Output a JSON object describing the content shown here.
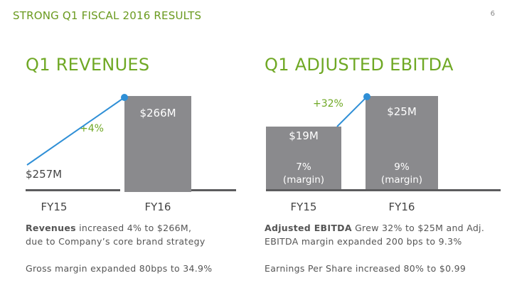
{
  "header": {
    "title": "STRONG Q1 FISCAL 2016 RESULTS",
    "page_number": "6"
  },
  "revenues": {
    "title": "Q1 REVENUES",
    "growth_label": "+4%",
    "fy15": {
      "value_label": "$257M",
      "year": "FY15"
    },
    "fy16": {
      "value_label": "$266M",
      "year": "FY16"
    }
  },
  "ebitda": {
    "title": "Q1 ADJUSTED EBITDA",
    "growth_label": "+32%",
    "fy15": {
      "value_label": "$19M",
      "margin_pct": "7%",
      "margin_word": "(margin)",
      "year": "FY15"
    },
    "fy16": {
      "value_label": "$25M",
      "margin_pct": "9%",
      "margin_word": "(margin)",
      "year": "FY16"
    }
  },
  "notes": {
    "revenue_bold": "Revenues",
    "revenue_rest": " increased 4% to $266M,",
    "revenue_line2": "due to Company’s core brand strategy",
    "gross_margin": "Gross margin expanded 80bps to 34.9%",
    "ebitda_bold": "Adjusted EBITDA",
    "ebitda_rest": " Grew 32% to $25M and Adj.",
    "ebitda_line2": "EBITDA margin expanded 200 bps to 9.3%",
    "eps": "Earnings Per Share increased 80% to $0.99"
  },
  "colors": {
    "accent_green": "#6fa824",
    "bar_gray": "#8a8a8d",
    "connector_blue": "#2f8fd6"
  },
  "chart_data": [
    {
      "type": "bar",
      "title": "Q1 REVENUES",
      "categories": [
        "FY15",
        "FY16"
      ],
      "values": [
        257,
        266
      ],
      "unit": "$M",
      "data_labels": [
        "$257M",
        "$266M"
      ],
      "annotation": "+4%"
    },
    {
      "type": "bar",
      "title": "Q1 ADJUSTED EBITDA",
      "categories": [
        "FY15",
        "FY16"
      ],
      "values": [
        19,
        25
      ],
      "unit": "$M",
      "data_labels": [
        "$19M",
        "$25M"
      ],
      "margins": [
        "7%",
        "9%"
      ],
      "annotation": "+32%"
    }
  ]
}
